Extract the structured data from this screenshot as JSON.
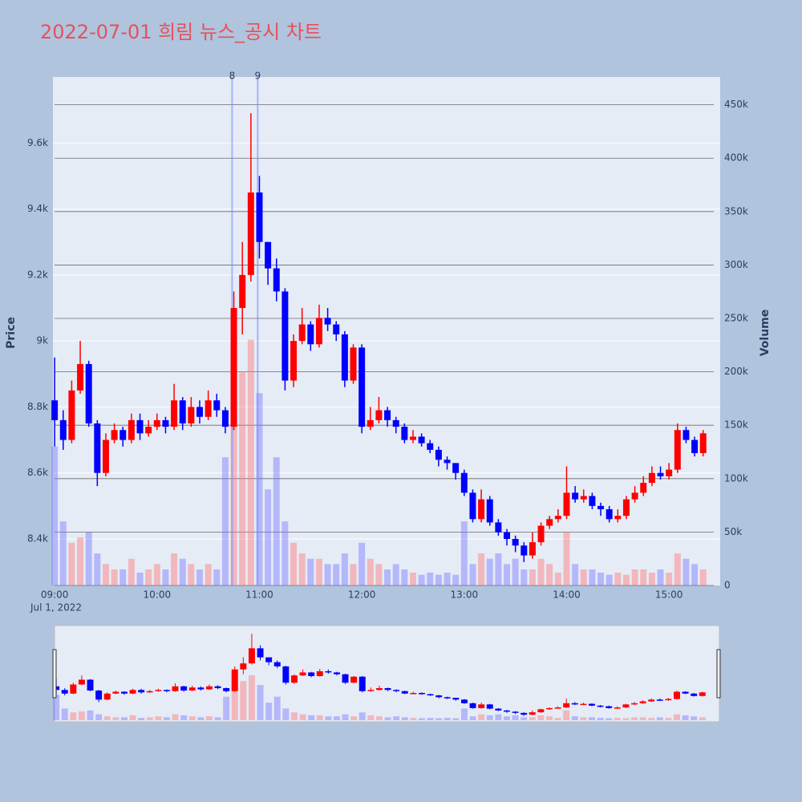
{
  "chart_data": {
    "type": "candlestick",
    "title": "2022-07-01 희림 뉴스_공시 차트",
    "ylabel": "Price",
    "y2label": "Volume",
    "x_sublabel": "Jul 1, 2022",
    "x": [
      "09:00",
      "09:05",
      "09:10",
      "09:15",
      "09:20",
      "09:25",
      "09:30",
      "09:35",
      "09:40",
      "09:45",
      "09:50",
      "09:55",
      "10:00",
      "10:05",
      "10:10",
      "10:15",
      "10:20",
      "10:25",
      "10:30",
      "10:35",
      "10:40",
      "10:45",
      "10:50",
      "10:55",
      "11:00",
      "11:05",
      "11:10",
      "11:15",
      "11:20",
      "11:25",
      "11:30",
      "11:35",
      "11:40",
      "11:45",
      "11:50",
      "11:55",
      "12:00",
      "12:05",
      "12:10",
      "12:15",
      "12:20",
      "12:25",
      "12:30",
      "12:35",
      "12:40",
      "12:45",
      "12:50",
      "12:55",
      "13:00",
      "13:05",
      "13:10",
      "13:15",
      "13:20",
      "13:25",
      "13:30",
      "13:35",
      "13:40",
      "13:45",
      "13:50",
      "13:55",
      "14:00",
      "14:05",
      "14:10",
      "14:15",
      "14:20",
      "14:25",
      "14:30",
      "14:35",
      "14:40",
      "14:45",
      "14:50",
      "14:55",
      "15:00",
      "15:05",
      "15:10",
      "15:15",
      "15:20"
    ],
    "open": [
      8820,
      8760,
      8700,
      8850,
      8930,
      8750,
      8600,
      8700,
      8730,
      8700,
      8760,
      8720,
      8740,
      8760,
      8740,
      8820,
      8750,
      8800,
      8770,
      8820,
      8790,
      8740,
      9100,
      9200,
      9450,
      9300,
      9220,
      9150,
      8880,
      9000,
      9050,
      8990,
      9070,
      9050,
      9020,
      8880,
      8980,
      8740,
      8760,
      8790,
      8760,
      8740,
      8700,
      8710,
      8690,
      8670,
      8640,
      8630,
      8600,
      8540,
      8460,
      8520,
      8450,
      8420,
      8400,
      8380,
      8350,
      8390,
      8440,
      8460,
      8470,
      8540,
      8520,
      8530,
      8500,
      8490,
      8460,
      8470,
      8520,
      8540,
      8570,
      8600,
      8590,
      8610,
      8730,
      8700,
      8660
    ],
    "high": [
      8950,
      8790,
      8880,
      9000,
      8940,
      8760,
      8720,
      8750,
      8740,
      8780,
      8780,
      8760,
      8780,
      8770,
      8870,
      8830,
      8830,
      8820,
      8850,
      8840,
      8800,
      9150,
      9300,
      9690,
      9500,
      9300,
      9250,
      9160,
      9020,
      9100,
      9060,
      9110,
      9100,
      9060,
      9030,
      8990,
      8990,
      8800,
      8830,
      8800,
      8770,
      8750,
      8730,
      8720,
      8700,
      8680,
      8650,
      8630,
      8610,
      8550,
      8550,
      8530,
      8460,
      8430,
      8410,
      8390,
      8420,
      8450,
      8470,
      8490,
      8620,
      8560,
      8550,
      8540,
      8510,
      8500,
      8490,
      8530,
      8560,
      8590,
      8620,
      8620,
      8630,
      8750,
      8740,
      8710,
      8730
    ],
    "low": [
      8680,
      8670,
      8690,
      8840,
      8740,
      8560,
      8590,
      8690,
      8680,
      8690,
      8700,
      8710,
      8730,
      8720,
      8730,
      8730,
      8740,
      8750,
      8760,
      8770,
      8720,
      8730,
      9020,
      9180,
      9250,
      9170,
      9120,
      8850,
      8860,
      8990,
      8970,
      8980,
      9030,
      9000,
      8860,
      8870,
      8720,
      8730,
      8750,
      8740,
      8720,
      8690,
      8690,
      8680,
      8660,
      8620,
      8610,
      8580,
      8530,
      8450,
      8450,
      8440,
      8410,
      8380,
      8360,
      8330,
      8340,
      8380,
      8430,
      8450,
      8460,
      8510,
      8510,
      8490,
      8470,
      8450,
      8450,
      8460,
      8510,
      8530,
      8560,
      8580,
      8580,
      8600,
      8690,
      8650,
      8650
    ],
    "close": [
      8760,
      8700,
      8850,
      8930,
      8750,
      8600,
      8700,
      8730,
      8700,
      8760,
      8720,
      8740,
      8760,
      8740,
      8820,
      8750,
      8800,
      8770,
      8820,
      8790,
      8740,
      9100,
      9200,
      9450,
      9300,
      9220,
      9150,
      8880,
      9000,
      9050,
      8990,
      9070,
      9050,
      9020,
      8880,
      8980,
      8740,
      8760,
      8790,
      8760,
      8740,
      8700,
      8710,
      8690,
      8670,
      8640,
      8630,
      8600,
      8540,
      8460,
      8520,
      8450,
      8420,
      8400,
      8380,
      8350,
      8390,
      8440,
      8460,
      8470,
      8540,
      8520,
      8530,
      8500,
      8490,
      8460,
      8470,
      8520,
      8540,
      8570,
      8600,
      8590,
      8610,
      8730,
      8700,
      8660,
      8720
    ],
    "volume": [
      130000,
      60000,
      40000,
      45000,
      50000,
      30000,
      20000,
      15000,
      15000,
      25000,
      12000,
      15000,
      20000,
      15000,
      30000,
      25000,
      20000,
      15000,
      20000,
      15000,
      120000,
      250000,
      200000,
      230000,
      180000,
      90000,
      120000,
      60000,
      40000,
      30000,
      25000,
      25000,
      20000,
      20000,
      30000,
      20000,
      40000,
      25000,
      20000,
      15000,
      20000,
      15000,
      12000,
      10000,
      12000,
      10000,
      12000,
      10000,
      60000,
      20000,
      30000,
      25000,
      30000,
      20000,
      25000,
      15000,
      15000,
      25000,
      20000,
      12000,
      50000,
      20000,
      15000,
      15000,
      12000,
      10000,
      12000,
      10000,
      15000,
      15000,
      12000,
      15000,
      12000,
      30000,
      25000,
      20000,
      15000
    ],
    "increasing_color": "#ff0000",
    "decreasing_color": "#0000ff",
    "volume_increasing_color": "rgba(255,120,120,0.45)",
    "volume_decreasing_color": "rgba(120,120,255,0.45)",
    "xlim": [
      "08:59",
      "15:30"
    ],
    "xticks": [
      "09:00",
      "10:00",
      "11:00",
      "12:00",
      "13:00",
      "14:00",
      "15:00"
    ],
    "ylim": [
      8259,
      9800
    ],
    "yticks": [
      {
        "value": 8400,
        "label": "8.4k"
      },
      {
        "value": 8600,
        "label": "8.6k"
      },
      {
        "value": 8800,
        "label": "8.8k"
      },
      {
        "value": 9000,
        "label": "9k"
      },
      {
        "value": 9200,
        "label": "9.2k"
      },
      {
        "value": 9400,
        "label": "9.4k"
      },
      {
        "value": 9600,
        "label": "9.6k"
      }
    ],
    "y2lim": [
      0,
      476000
    ],
    "y2ticks": [
      0,
      {
        "value": 50000,
        "label": "50k"
      },
      {
        "value": 100000,
        "label": "100k"
      },
      {
        "value": 150000,
        "label": "150k"
      },
      {
        "value": 200000,
        "label": "200k"
      },
      {
        "value": 250000,
        "label": "250k"
      },
      {
        "value": 300000,
        "label": "300k"
      },
      {
        "value": 350000,
        "label": "350k"
      },
      {
        "value": 400000,
        "label": "400k"
      },
      {
        "value": 450000,
        "label": "450k"
      }
    ],
    "annotations": [
      {
        "x": "10:44",
        "text": "8"
      },
      {
        "x": "10:59",
        "text": "9"
      }
    ],
    "grid": true,
    "rangeslider": true
  }
}
